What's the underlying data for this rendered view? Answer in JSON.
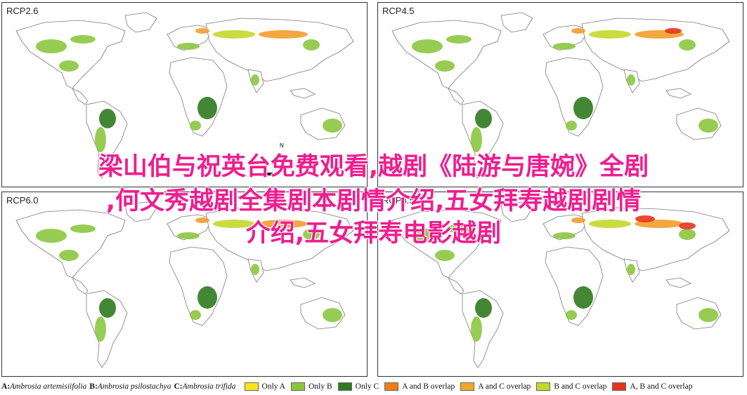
{
  "panels": [
    {
      "title": "RCP2.6"
    },
    {
      "title": "RCP4.5"
    },
    {
      "title": "RCP6.0"
    },
    {
      "title": "RCP8.5"
    }
  ],
  "overlay_lines": [
    "梁山伯与祝英台免费观看,越剧《陆游与唐婉》全剧",
    ",何文秀越剧全集剧本剧情介绍,五女拜寿越剧剧情",
    "介绍,五女拜寿电影越剧"
  ],
  "north_label": "N",
  "legend": {
    "species": [
      {
        "key": "A:",
        "name": "Ambrosia artemisiifolia"
      },
      {
        "key": "B:",
        "name": "Ambrosia psilostachya"
      },
      {
        "key": "C:",
        "name": "Ambrosia trifida"
      }
    ],
    "items": [
      {
        "label": "Only A",
        "color": "#f7e51b"
      },
      {
        "label": "Only B",
        "color": "#8cc63f"
      },
      {
        "label": "Only C",
        "color": "#2f7a1f"
      },
      {
        "label": "A and B overlap",
        "color": "#f07c1a"
      },
      {
        "label": "A and C overlap",
        "color": "#f5a623"
      },
      {
        "label": "B and C overlap",
        "color": "#c3d82b"
      },
      {
        "label": "A, B and C overlap",
        "color": "#e8331c"
      }
    ]
  }
}
